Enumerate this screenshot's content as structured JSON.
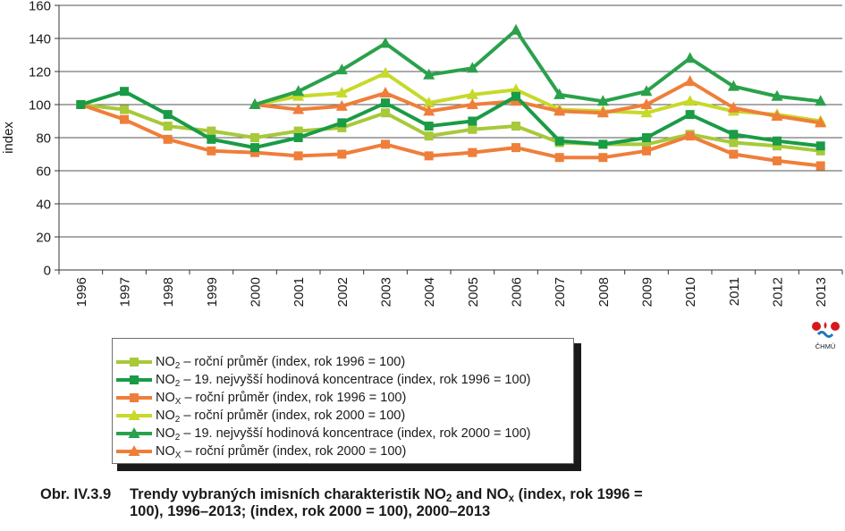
{
  "chart_data": {
    "type": "line",
    "ylabel": "index",
    "ylim": [
      0,
      160
    ],
    "yticks": [
      0,
      20,
      40,
      60,
      80,
      100,
      120,
      140,
      160
    ],
    "grid": true,
    "categories": [
      "1996",
      "1997",
      "1998",
      "1999",
      "2000",
      "2001",
      "2002",
      "2003",
      "2004",
      "2005",
      "2006",
      "2007",
      "2008",
      "2009",
      "2010",
      "2011",
      "2012",
      "2013"
    ],
    "series": [
      {
        "name": "NO2 – roční průměr (index, rok 1996 = 100)",
        "color": "#a7c93a",
        "marker": "square",
        "values": [
          100,
          97,
          87,
          84,
          80,
          84,
          86,
          95,
          81,
          85,
          87,
          77,
          76,
          76,
          82,
          77,
          75,
          72
        ]
      },
      {
        "name": "NO2 – 19. nejvyšší hodinová koncentrace (index, rok 1996 = 100)",
        "color": "#1a9b46",
        "marker": "square",
        "values": [
          100,
          108,
          94,
          79,
          74,
          80,
          89,
          101,
          87,
          90,
          105,
          78,
          76,
          80,
          94,
          82,
          78,
          75
        ]
      },
      {
        "name": "NOX – roční průměr (index, rok 1996 = 100)",
        "color": "#ef7e3a",
        "marker": "square",
        "values": [
          100,
          91,
          79,
          72,
          71,
          69,
          70,
          76,
          69,
          71,
          74,
          68,
          68,
          72,
          81,
          70,
          66,
          63
        ]
      },
      {
        "name": "NO2 – roční průměr (index, rok 2000 = 100)",
        "color": "#c7d92a",
        "marker": "triangle",
        "values": [
          null,
          null,
          null,
          null,
          100,
          105,
          107,
          119,
          101,
          106,
          109,
          97,
          96,
          95,
          102,
          96,
          94,
          90
        ]
      },
      {
        "name": "NO2 – 19. nejvyšší hodinová koncentrace (index, rok 2000 = 100)",
        "color": "#2aa14b",
        "marker": "triangle",
        "values": [
          null,
          null,
          null,
          null,
          100,
          108,
          121,
          137,
          118,
          122,
          145,
          106,
          102,
          108,
          128,
          111,
          105,
          102
        ]
      },
      {
        "name": "NOX – roční průměr (index, rok 2000 = 100)",
        "color": "#ef7e3a",
        "marker": "triangle",
        "values": [
          null,
          null,
          null,
          null,
          100,
          97,
          99,
          107,
          96,
          100,
          102,
          96,
          95,
          100,
          114,
          98,
          93,
          89
        ]
      }
    ]
  },
  "legend": {
    "items": [
      {
        "prefix": "NO",
        "sub": "2",
        "text": " – roční průměr (index, rok 1996 = 100)"
      },
      {
        "prefix": "NO",
        "sub": "2",
        "text": " – 19. nejvyšší hodinová koncentrace (index, rok 1996 = 100)"
      },
      {
        "prefix": "NO",
        "sub": "X",
        "text": " – roční průměr (index, rok 1996 = 100)"
      },
      {
        "prefix": "NO",
        "sub": "2",
        "text": " – roční průměr (index, rok 2000 = 100)"
      },
      {
        "prefix": "NO",
        "sub": "2",
        "text": " – 19. nejvyšší hodinová koncentrace (index, rok 2000 = 100)"
      },
      {
        "prefix": "NO",
        "sub": "X",
        "text": " – roční průměr (index, rok 2000 = 100)"
      }
    ]
  },
  "logo": {
    "label": "ČHMÚ",
    "colors": [
      "#d7191c",
      "#1f78b4"
    ]
  },
  "caption": {
    "number": "Obr. IV.3.9",
    "text_a": "Trendy vybraných imisních charakteristik NO",
    "sub_a": "2",
    "text_b": " and NO",
    "sub_b": "x",
    "text_c": " (index, rok 1996 =",
    "line2": "100), 1996–2013; (index, rok 2000 = 100), 2000–2013"
  }
}
